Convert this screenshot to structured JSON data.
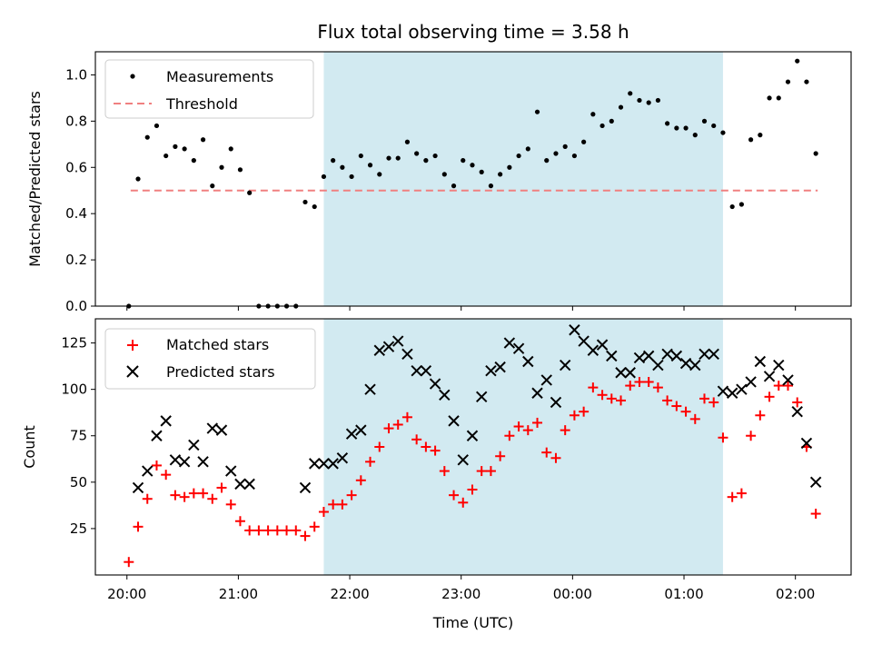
{
  "title": "Flux total observing time = 3.58 h",
  "xlabel": "Time (UTC)",
  "x_ticks": [
    "20:00",
    "21:00",
    "22:00",
    "23:00",
    "00:00",
    "01:00",
    "02:00"
  ],
  "colors": {
    "measurements": "#000000",
    "threshold": "#f08080",
    "matched": "#ff0000",
    "predicted": "#000000",
    "span": "#add8e6"
  },
  "chart_data": [
    {
      "type": "scatter",
      "ylabel": "Matched/Predicted stars",
      "xlim": [
        "19:43",
        "02:30"
      ],
      "ylim": [
        0,
        1.1
      ],
      "yticks": [
        "0.0",
        "0.2",
        "0.4",
        "0.6",
        "0.8",
        "1.0"
      ],
      "highlight_span": [
        "21:46",
        "01:21"
      ],
      "legend": {
        "position": "top-left",
        "entries": [
          "Measurements",
          "Threshold"
        ]
      },
      "threshold": {
        "name": "Threshold",
        "value": 0.5,
        "x_range": [
          "20:02",
          "02:12"
        ]
      },
      "series": [
        {
          "name": "Measurements",
          "marker": "dot",
          "points": [
            [
              "20:01",
              0.0
            ],
            [
              "20:06",
              0.55
            ],
            [
              "20:11",
              0.73
            ],
            [
              "20:16",
              0.78
            ],
            [
              "20:21",
              0.65
            ],
            [
              "20:26",
              0.69
            ],
            [
              "20:31",
              0.68
            ],
            [
              "20:36",
              0.63
            ],
            [
              "20:41",
              0.72
            ],
            [
              "20:46",
              0.52
            ],
            [
              "20:51",
              0.6
            ],
            [
              "20:56",
              0.68
            ],
            [
              "21:01",
              0.59
            ],
            [
              "21:06",
              0.49
            ],
            [
              "21:11",
              0.0
            ],
            [
              "21:16",
              0.0
            ],
            [
              "21:21",
              0.0
            ],
            [
              "21:26",
              0.0
            ],
            [
              "21:31",
              0.0
            ],
            [
              "21:36",
              0.45
            ],
            [
              "21:41",
              0.43
            ],
            [
              "21:46",
              0.56
            ],
            [
              "21:51",
              0.63
            ],
            [
              "21:56",
              0.6
            ],
            [
              "22:01",
              0.56
            ],
            [
              "22:06",
              0.65
            ],
            [
              "22:11",
              0.61
            ],
            [
              "22:16",
              0.57
            ],
            [
              "22:21",
              0.64
            ],
            [
              "22:26",
              0.64
            ],
            [
              "22:31",
              0.71
            ],
            [
              "22:36",
              0.66
            ],
            [
              "22:41",
              0.63
            ],
            [
              "22:46",
              0.65
            ],
            [
              "22:51",
              0.57
            ],
            [
              "22:56",
              0.52
            ],
            [
              "23:01",
              0.63
            ],
            [
              "23:06",
              0.61
            ],
            [
              "23:11",
              0.58
            ],
            [
              "23:16",
              0.52
            ],
            [
              "23:21",
              0.57
            ],
            [
              "23:26",
              0.6
            ],
            [
              "23:31",
              0.65
            ],
            [
              "23:36",
              0.68
            ],
            [
              "23:41",
              0.84
            ],
            [
              "23:46",
              0.63
            ],
            [
              "23:51",
              0.66
            ],
            [
              "23:56",
              0.69
            ],
            [
              "00:01",
              0.65
            ],
            [
              "00:06",
              0.71
            ],
            [
              "00:11",
              0.83
            ],
            [
              "00:16",
              0.78
            ],
            [
              "00:21",
              0.8
            ],
            [
              "00:26",
              0.86
            ],
            [
              "00:31",
              0.92
            ],
            [
              "00:36",
              0.89
            ],
            [
              "00:41",
              0.88
            ],
            [
              "00:46",
              0.89
            ],
            [
              "00:51",
              0.79
            ],
            [
              "00:56",
              0.77
            ],
            [
              "01:01",
              0.77
            ],
            [
              "01:06",
              0.74
            ],
            [
              "01:11",
              0.8
            ],
            [
              "01:16",
              0.78
            ],
            [
              "01:21",
              0.75
            ],
            [
              "01:26",
              0.43
            ],
            [
              "01:31",
              0.44
            ],
            [
              "01:36",
              0.72
            ],
            [
              "01:41",
              0.74
            ],
            [
              "01:46",
              0.9
            ],
            [
              "01:51",
              0.9
            ],
            [
              "01:56",
              0.97
            ],
            [
              "02:01",
              1.06
            ],
            [
              "02:06",
              0.97
            ],
            [
              "02:11",
              0.66
            ]
          ]
        }
      ]
    },
    {
      "type": "scatter",
      "ylabel": "Count",
      "xlim": [
        "19:43",
        "02:30"
      ],
      "ylim": [
        0,
        138
      ],
      "yticks": [
        "25",
        "50",
        "75",
        "100",
        "125"
      ],
      "highlight_span": [
        "21:46",
        "01:21"
      ],
      "legend": {
        "position": "top-left",
        "entries": [
          "Matched stars",
          "Predicted stars"
        ]
      },
      "series": [
        {
          "name": "Matched stars",
          "marker": "plus",
          "points": [
            [
              "20:01",
              7
            ],
            [
              "20:06",
              26
            ],
            [
              "20:11",
              41
            ],
            [
              "20:16",
              59
            ],
            [
              "20:21",
              54
            ],
            [
              "20:26",
              43
            ],
            [
              "20:31",
              42
            ],
            [
              "20:36",
              44
            ],
            [
              "20:41",
              44
            ],
            [
              "20:46",
              41
            ],
            [
              "20:51",
              47
            ],
            [
              "20:56",
              38
            ],
            [
              "21:01",
              29
            ],
            [
              "21:06",
              24
            ],
            [
              "21:11",
              24
            ],
            [
              "21:16",
              24
            ],
            [
              "21:21",
              24
            ],
            [
              "21:26",
              24
            ],
            [
              "21:31",
              24
            ],
            [
              "21:36",
              21
            ],
            [
              "21:41",
              26
            ],
            [
              "21:46",
              34
            ],
            [
              "21:51",
              38
            ],
            [
              "21:56",
              38
            ],
            [
              "22:01",
              43
            ],
            [
              "22:06",
              51
            ],
            [
              "22:11",
              61
            ],
            [
              "22:16",
              69
            ],
            [
              "22:21",
              79
            ],
            [
              "22:26",
              81
            ],
            [
              "22:31",
              85
            ],
            [
              "22:36",
              73
            ],
            [
              "22:41",
              69
            ],
            [
              "22:46",
              67
            ],
            [
              "22:51",
              56
            ],
            [
              "22:56",
              43
            ],
            [
              "23:01",
              39
            ],
            [
              "23:06",
              46
            ],
            [
              "23:11",
              56
            ],
            [
              "23:16",
              56
            ],
            [
              "23:21",
              64
            ],
            [
              "23:26",
              75
            ],
            [
              "23:31",
              80
            ],
            [
              "23:36",
              78
            ],
            [
              "23:41",
              82
            ],
            [
              "23:46",
              66
            ],
            [
              "23:51",
              63
            ],
            [
              "23:56",
              78
            ],
            [
              "00:01",
              86
            ],
            [
              "00:06",
              88
            ],
            [
              "00:11",
              101
            ],
            [
              "00:16",
              97
            ],
            [
              "00:21",
              95
            ],
            [
              "00:26",
              94
            ],
            [
              "00:31",
              102
            ],
            [
              "00:36",
              104
            ],
            [
              "00:41",
              104
            ],
            [
              "00:46",
              101
            ],
            [
              "00:51",
              94
            ],
            [
              "00:56",
              91
            ],
            [
              "01:01",
              88
            ],
            [
              "01:06",
              84
            ],
            [
              "01:11",
              95
            ],
            [
              "01:16",
              93
            ],
            [
              "01:21",
              74
            ],
            [
              "01:26",
              42
            ],
            [
              "01:31",
              44
            ],
            [
              "01:36",
              75
            ],
            [
              "01:41",
              86
            ],
            [
              "01:46",
              96
            ],
            [
              "01:51",
              102
            ],
            [
              "01:56",
              102
            ],
            [
              "02:01",
              93
            ],
            [
              "02:06",
              69
            ],
            [
              "02:11",
              33
            ]
          ]
        },
        {
          "name": "Predicted stars",
          "marker": "x",
          "points": [
            [
              "20:06",
              47
            ],
            [
              "20:11",
              56
            ],
            [
              "20:16",
              75
            ],
            [
              "20:21",
              83
            ],
            [
              "20:26",
              62
            ],
            [
              "20:31",
              61
            ],
            [
              "20:36",
              70
            ],
            [
              "20:41",
              61
            ],
            [
              "20:46",
              79
            ],
            [
              "20:51",
              78
            ],
            [
              "20:56",
              56
            ],
            [
              "21:01",
              49
            ],
            [
              "21:06",
              49
            ],
            [
              "21:36",
              47
            ],
            [
              "21:41",
              60
            ],
            [
              "21:46",
              60
            ],
            [
              "21:51",
              60
            ],
            [
              "21:56",
              63
            ],
            [
              "22:01",
              76
            ],
            [
              "22:06",
              78
            ],
            [
              "22:11",
              100
            ],
            [
              "22:16",
              121
            ],
            [
              "22:21",
              123
            ],
            [
              "22:26",
              126
            ],
            [
              "22:31",
              119
            ],
            [
              "22:36",
              110
            ],
            [
              "22:41",
              110
            ],
            [
              "22:46",
              103
            ],
            [
              "22:51",
              97
            ],
            [
              "22:56",
              83
            ],
            [
              "23:01",
              62
            ],
            [
              "23:06",
              75
            ],
            [
              "23:11",
              96
            ],
            [
              "23:16",
              110
            ],
            [
              "23:21",
              112
            ],
            [
              "23:26",
              125
            ],
            [
              "23:31",
              122
            ],
            [
              "23:36",
              115
            ],
            [
              "23:41",
              98
            ],
            [
              "23:46",
              105
            ],
            [
              "23:51",
              93
            ],
            [
              "23:56",
              113
            ],
            [
              "00:01",
              132
            ],
            [
              "00:06",
              126
            ],
            [
              "00:11",
              121
            ],
            [
              "00:16",
              124
            ],
            [
              "00:21",
              118
            ],
            [
              "00:26",
              109
            ],
            [
              "00:31",
              109
            ],
            [
              "00:36",
              117
            ],
            [
              "00:41",
              118
            ],
            [
              "00:46",
              113
            ],
            [
              "00:51",
              119
            ],
            [
              "00:56",
              118
            ],
            [
              "01:01",
              114
            ],
            [
              "01:06",
              113
            ],
            [
              "01:11",
              119
            ],
            [
              "01:16",
              119
            ],
            [
              "01:21",
              99
            ],
            [
              "01:26",
              98
            ],
            [
              "01:31",
              100
            ],
            [
              "01:36",
              104
            ],
            [
              "01:41",
              115
            ],
            [
              "01:46",
              107
            ],
            [
              "01:51",
              113
            ],
            [
              "01:56",
              105
            ],
            [
              "02:01",
              88
            ],
            [
              "02:06",
              71
            ],
            [
              "02:11",
              50
            ]
          ]
        }
      ]
    }
  ]
}
